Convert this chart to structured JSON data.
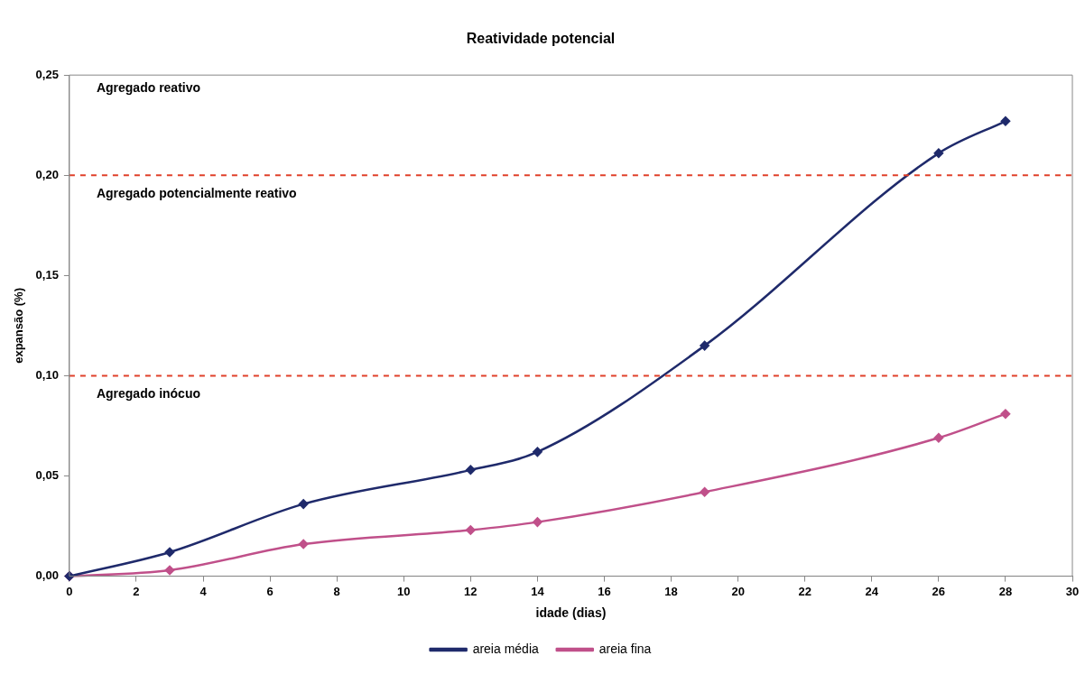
{
  "chart_data": {
    "type": "line",
    "title": "Reatividade potencial",
    "xlabel": "idade (dias)",
    "ylabel": "expansão (%)",
    "x": [
      0,
      3,
      7,
      12,
      14,
      19,
      26,
      28
    ],
    "series": [
      {
        "name": "areia média",
        "color": "#1f2a6b",
        "values": [
          0,
          0.012,
          0.036,
          0.053,
          0.062,
          0.115,
          0.211,
          0.227
        ]
      },
      {
        "name": "areia fina",
        "color": "#c0508a",
        "values": [
          0,
          0.003,
          0.016,
          0.023,
          0.027,
          0.042,
          0.069,
          0.081
        ]
      }
    ],
    "xlim": [
      0,
      30
    ],
    "xticks": [
      0,
      2,
      4,
      6,
      8,
      10,
      12,
      14,
      16,
      18,
      20,
      22,
      24,
      26,
      28,
      30
    ],
    "ylim": [
      0,
      0.25
    ],
    "yticks": [
      {
        "value": 0,
        "label": "0,00"
      },
      {
        "value": 0.05,
        "label": "0,05"
      },
      {
        "value": 0.1,
        "label": "0,10"
      },
      {
        "value": 0.15,
        "label": "0,15"
      },
      {
        "value": 0.2,
        "label": "0,20"
      },
      {
        "value": 0.25,
        "label": "0,25"
      }
    ],
    "ref_lines": [
      {
        "axis": "y",
        "value": 0.2,
        "color": "#e0402a",
        "line_style": "dashed"
      },
      {
        "axis": "y",
        "value": 0.1,
        "color": "#e0402a",
        "line_style": "dashed"
      }
    ],
    "annotations": [
      "Agregado reativo",
      "Agregado potencialmente reativo",
      "Agregado inócuo"
    ],
    "marker": "diamond",
    "line_style": "solid",
    "grid": false,
    "legend": "bottom"
  }
}
